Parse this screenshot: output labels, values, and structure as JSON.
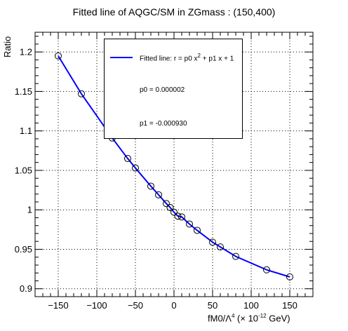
{
  "chart_data": {
    "type": "scatter",
    "title": "Fitted line of AQGC/SM in ZGmass : (150,400)",
    "xlabel_prefix": "fM0/",
    "xlabel_lambda": "Λ",
    "xlabel_exp4": "4",
    "xlabel_middle": " (× 10",
    "xlabel_exp": "-12",
    "xlabel_suffix": " GeV)",
    "ylabel": "Ratio",
    "xlim": [
      -180,
      180
    ],
    "ylim": [
      0.89,
      1.225
    ],
    "xticks": [
      -150,
      -100,
      -50,
      0,
      50,
      100,
      150
    ],
    "xtick_labels": [
      "−150",
      "−100",
      "−50",
      "0",
      "50",
      "100",
      "150"
    ],
    "yticks": [
      0.9,
      0.95,
      1.0,
      1.05,
      1.1,
      1.15,
      1.2
    ],
    "ytick_labels": [
      "0.9",
      "0.95",
      "1",
      "1.05",
      "1.1",
      "1.15",
      "1.2"
    ],
    "grid": true,
    "legend_position": "top-right",
    "fit": {
      "p0": 2e-06,
      "p1": -0.00093
    },
    "series": [
      {
        "x": [
          -150,
          -120,
          -80,
          -60,
          -50,
          -30,
          -20,
          -10,
          -5,
          0,
          5,
          10,
          20,
          30,
          50,
          60,
          80,
          120,
          150
        ],
        "y": [
          1.195,
          1.147,
          1.091,
          1.065,
          1.053,
          1.03,
          1.019,
          1.008,
          1.003,
          0.997,
          0.992,
          0.991,
          0.982,
          0.974,
          0.959,
          0.953,
          0.941,
          0.924,
          0.915
        ]
      }
    ],
    "colors": {
      "fit_line": "#0000ff",
      "markers": "#000000"
    }
  },
  "legend": {
    "fit_label_prefix": "Fitted line: r =  p0 x",
    "fit_label_exp": "2",
    "fit_label_suffix": " + p1 x + 1",
    "p0_text": "p0 = 0.000002",
    "p1_text": "p1 = -0.000930"
  }
}
